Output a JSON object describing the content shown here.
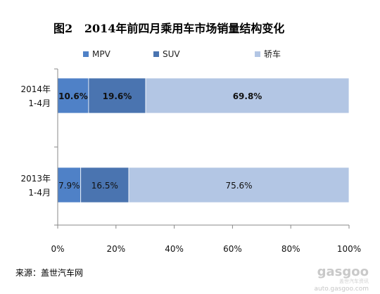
{
  "figure_title": "图2   2014年前四月乘用车市场销量结构变化",
  "source_note": "来源：盖世汽车网",
  "watermark": {
    "text": "gasgoo",
    "subtext": "盖世汽车资讯",
    "url": "auto.gasgoo.com"
  },
  "chart_data": {
    "type": "bar",
    "orientation": "horizontal",
    "stacked": "percent",
    "categories": [
      [
        "2014年",
        "1-4月"
      ],
      [
        "2013年",
        "1-4月"
      ]
    ],
    "series": [
      {
        "name": "MPV",
        "color": "#4f81c7",
        "values": [
          10.6,
          7.9
        ],
        "labels": [
          "10.6%",
          "7.9%"
        ],
        "label_bold": true
      },
      {
        "name": "SUV",
        "color": "#4a74b0",
        "values": [
          19.6,
          16.5
        ],
        "labels": [
          "19.6%",
          "16.5%"
        ],
        "label_bold": true
      },
      {
        "name": "轿车",
        "color": "#b3c6e4",
        "values": [
          69.8,
          75.6
        ],
        "labels": [
          "69.8%",
          "75.6%"
        ],
        "label_bold": true
      }
    ],
    "bold_labels_for_category": 0,
    "xlim": [
      0,
      100
    ],
    "xticks": [
      "0%",
      "20%",
      "40%",
      "60%",
      "80%",
      "100%"
    ],
    "legend_position": "top",
    "grid": false
  }
}
